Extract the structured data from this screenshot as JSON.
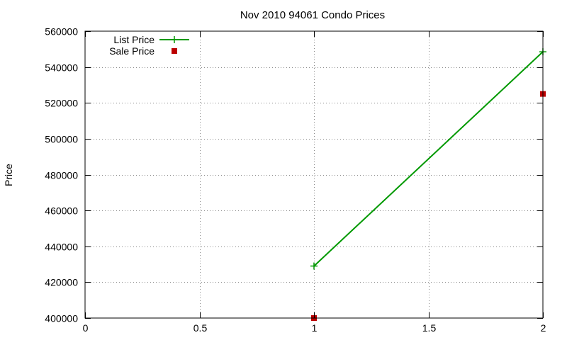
{
  "chart_data": {
    "type": "line",
    "title": "Nov 2010 94061 Condo Prices",
    "xlabel": "",
    "ylabel": "Price",
    "xlim": [
      0,
      2
    ],
    "ylim": [
      400000,
      560000
    ],
    "x_ticks": [
      0,
      0.5,
      1,
      1.5,
      2
    ],
    "x_tick_labels": [
      "0",
      "0.5",
      "1",
      "1.5",
      "2"
    ],
    "y_ticks": [
      400000,
      420000,
      440000,
      460000,
      480000,
      500000,
      520000,
      540000,
      560000
    ],
    "y_tick_labels": [
      "400000",
      "420000",
      "440000",
      "460000",
      "480000",
      "500000",
      "520000",
      "540000",
      "560000"
    ],
    "grid": true,
    "legend_position": "top-left",
    "series": [
      {
        "name": "List Price",
        "style": "linespoints",
        "marker": "plus",
        "color": "#009900",
        "x": [
          1,
          2
        ],
        "values": [
          429000,
          548500
        ]
      },
      {
        "name": "Sale Price",
        "style": "points",
        "marker": "square",
        "color": "#bb0000",
        "x": [
          1,
          2
        ],
        "values": [
          400000,
          525000
        ]
      }
    ]
  }
}
